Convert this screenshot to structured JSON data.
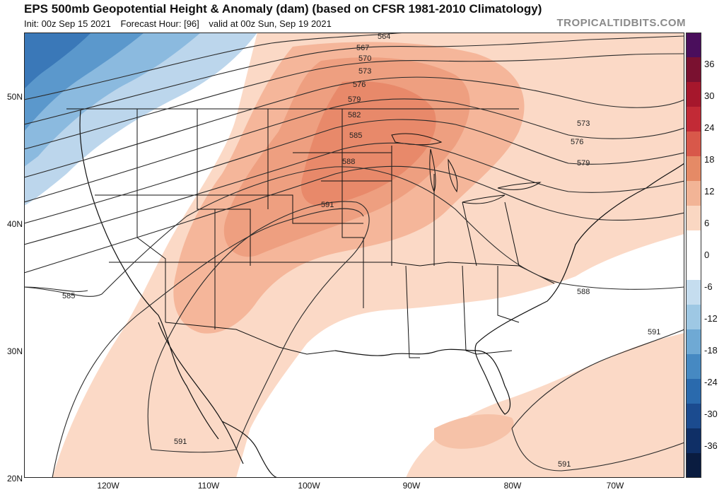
{
  "header": {
    "title": "EPS 500mb Geopotential Height & Anomaly (dam) (based on CFSR 1981-2010 Climatology)",
    "init": "Init: 00z Sep 15 2021",
    "forecast_hour": "Forecast Hour: [96]",
    "valid": "valid at 00z Sun, Sep 19 2021",
    "brand": "TROPICALTIDBITS.COM"
  },
  "axes": {
    "lat_labels": [
      "50N",
      "40N",
      "30N",
      "20N"
    ],
    "lon_labels": [
      "120W",
      "110W",
      "100W",
      "90W",
      "80W",
      "70W"
    ]
  },
  "contours": {
    "labels": [
      "564",
      "567",
      "570",
      "573",
      "576",
      "579",
      "582",
      "585",
      "588",
      "591",
      "573",
      "576",
      "579",
      "588",
      "591",
      "591",
      "585",
      "591"
    ]
  },
  "colorbar": {
    "ticks": [
      "36",
      "30",
      "24",
      "18",
      "12",
      "6",
      "0",
      "-6",
      "-12",
      "-18",
      "-24",
      "-30",
      "-36"
    ],
    "colors": [
      "#4a0e5c",
      "#7a1130",
      "#a6172c",
      "#c22a36",
      "#d8584a",
      "#e58a66",
      "#f2b496",
      "#fad7c2",
      "#ffffff",
      "#ffffff",
      "#c5ddef",
      "#9ec8e4",
      "#6fa9d4",
      "#4689c2",
      "#2a6aad",
      "#1b4b8f",
      "#0f2f66",
      "#0a1c40"
    ]
  }
}
